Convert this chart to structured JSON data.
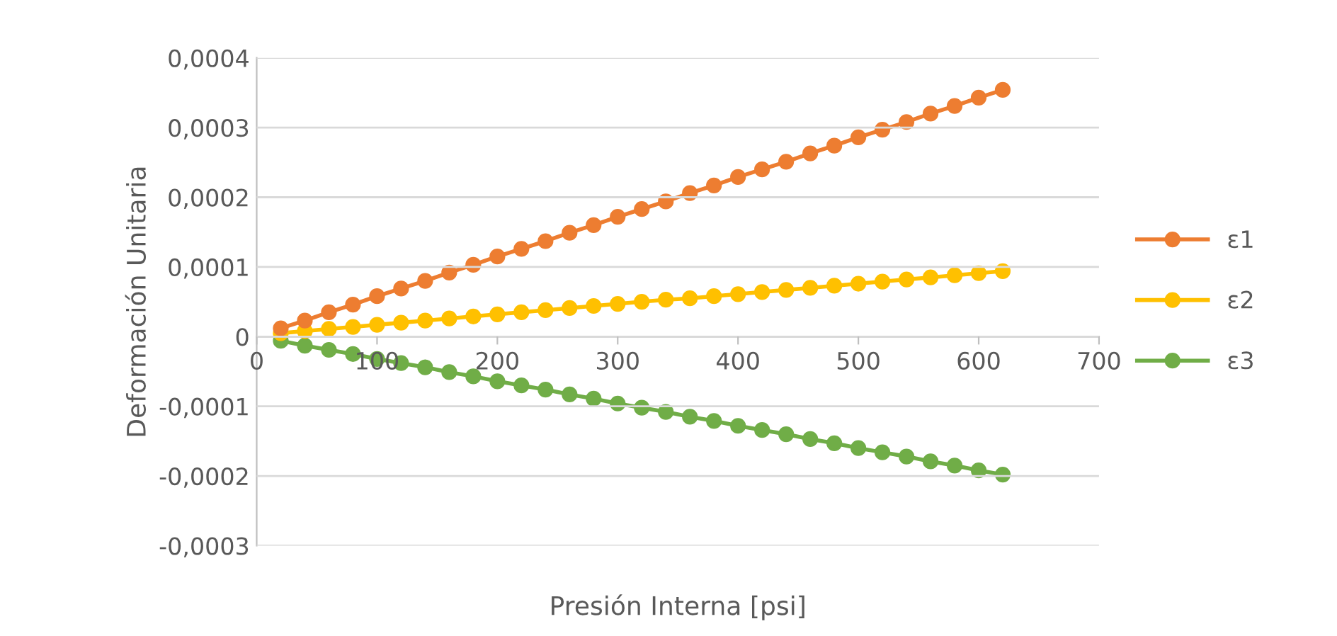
{
  "chart_data": {
    "type": "line",
    "xlabel": "Presión Interna [psi]",
    "ylabel": "Deformación Unitaria",
    "x": [
      20,
      40,
      60,
      80,
      100,
      120,
      140,
      160,
      180,
      200,
      220,
      240,
      260,
      280,
      300,
      320,
      340,
      360,
      380,
      400,
      420,
      440,
      460,
      480,
      500,
      520,
      540,
      560,
      580,
      600,
      620
    ],
    "series": [
      {
        "name": "ε1",
        "color": "#ed7d31",
        "values": [
          1.2e-05,
          2.3e-05,
          3.5e-05,
          4.6e-05,
          5.8e-05,
          6.9e-05,
          8e-05,
          9.2e-05,
          0.000103,
          0.000115,
          0.000126,
          0.000137,
          0.000149,
          0.00016,
          0.000172,
          0.000183,
          0.000194,
          0.000206,
          0.000217,
          0.000229,
          0.00024,
          0.000251,
          0.000263,
          0.000274,
          0.000286,
          0.000297,
          0.000308,
          0.00032,
          0.000331,
          0.000343,
          0.000354
        ]
      },
      {
        "name": "ε2",
        "color": "#ffc000",
        "values": [
          5e-06,
          8e-06,
          1.1e-05,
          1.4e-05,
          1.7e-05,
          2e-05,
          2.3e-05,
          2.6e-05,
          2.9e-05,
          3.2e-05,
          3.5e-05,
          3.8e-05,
          4.1e-05,
          4.4e-05,
          4.7e-05,
          5e-05,
          5.3e-05,
          5.5e-05,
          5.8e-05,
          6.1e-05,
          6.4e-05,
          6.7e-05,
          7e-05,
          7.3e-05,
          7.6e-05,
          7.9e-05,
          8.2e-05,
          8.5e-05,
          8.8e-05,
          9.1e-05,
          9.4e-05
        ]
      },
      {
        "name": "ε3",
        "color": "#70ad47",
        "values": [
          -6e-06,
          -1.3e-05,
          -1.9e-05,
          -2.5e-05,
          -3.2e-05,
          -3.8e-05,
          -4.4e-05,
          -5.1e-05,
          -5.7e-05,
          -6.4e-05,
          -7e-05,
          -7.6e-05,
          -8.3e-05,
          -8.9e-05,
          -9.6e-05,
          -0.000102,
          -0.000108,
          -0.000115,
          -0.000121,
          -0.000128,
          -0.000134,
          -0.00014,
          -0.000147,
          -0.000153,
          -0.00016,
          -0.000166,
          -0.000172,
          -0.000179,
          -0.000185,
          -0.000192,
          -0.000198
        ]
      }
    ],
    "xlim": [
      0,
      700
    ],
    "xticks": [
      0,
      100,
      200,
      300,
      400,
      500,
      600,
      700
    ],
    "ylim": [
      -0.0003,
      0.0004
    ],
    "yticks": [
      {
        "value": -0.0003,
        "label": "-0,0003"
      },
      {
        "value": -0.0002,
        "label": "-0,0002"
      },
      {
        "value": -0.0001,
        "label": "-0,0001"
      },
      {
        "value": 0,
        "label": "0"
      },
      {
        "value": 0.0001,
        "label": "0,0001"
      },
      {
        "value": 0.0002,
        "label": "0,0002"
      },
      {
        "value": 0.0003,
        "label": "0,0003"
      },
      {
        "value": 0.0004,
        "label": "0,0004"
      }
    ],
    "grid": "y",
    "legend": "right",
    "marker": "circle",
    "line_style": "solid"
  }
}
